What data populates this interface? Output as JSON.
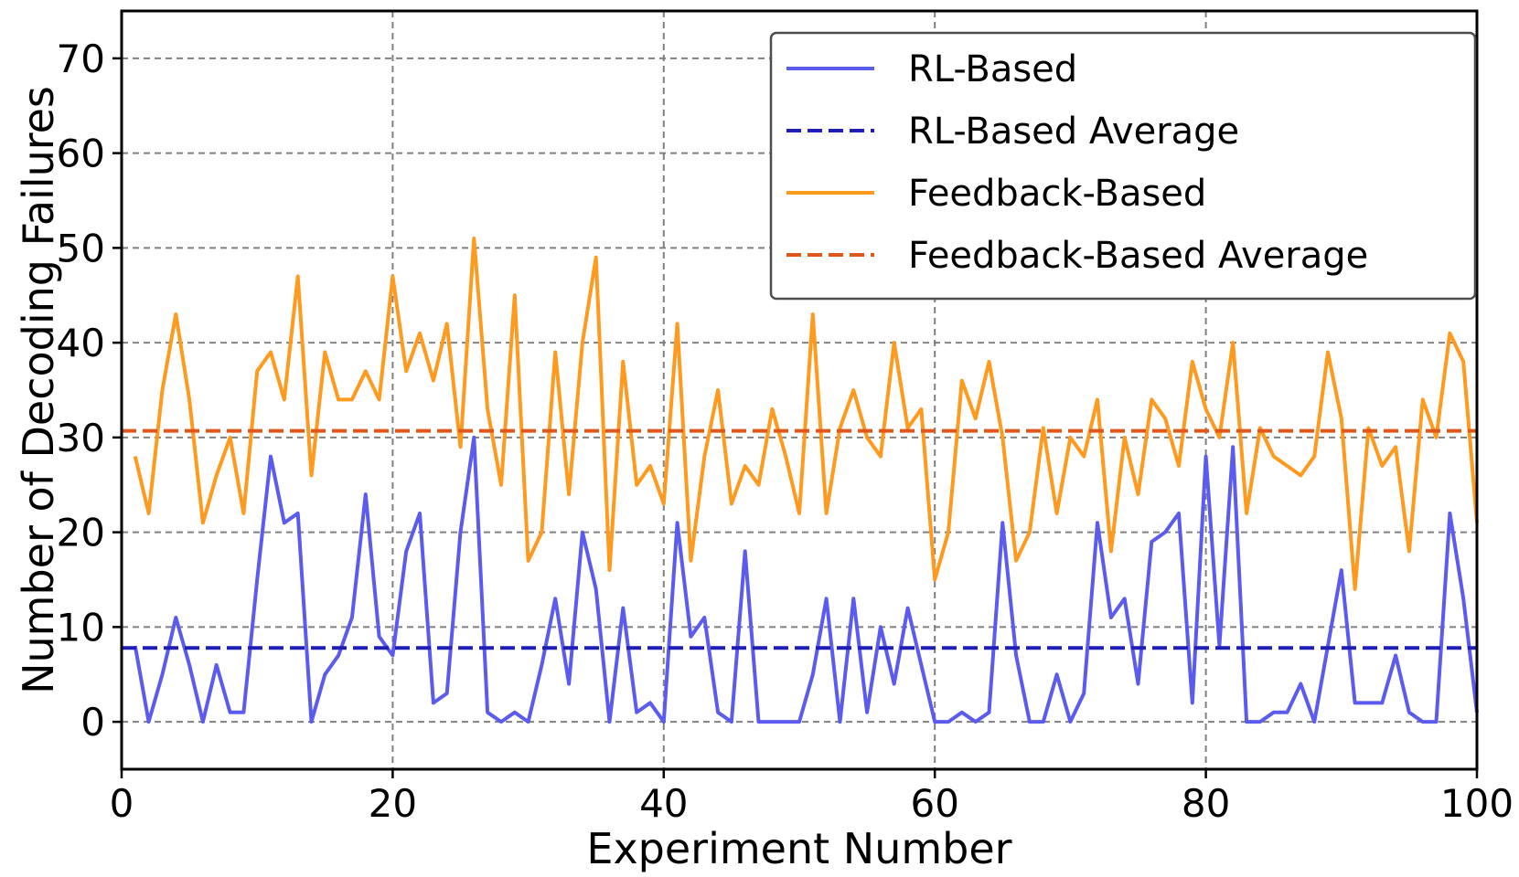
{
  "chart_data": {
    "type": "line",
    "title": "",
    "xlabel": "Experiment Number",
    "ylabel": "Number of Decoding Failures",
    "xlim": [
      0,
      100
    ],
    "ylim": [
      -5,
      75
    ],
    "xticks": [
      0,
      20,
      40,
      60,
      80,
      100
    ],
    "yticks": [
      0,
      10,
      20,
      30,
      40,
      50,
      60,
      70
    ],
    "grid": true,
    "legend_position": "top-right",
    "x": [
      1,
      2,
      3,
      4,
      5,
      6,
      7,
      8,
      9,
      10,
      11,
      12,
      13,
      14,
      15,
      16,
      17,
      18,
      19,
      20,
      21,
      22,
      23,
      24,
      25,
      26,
      27,
      28,
      29,
      30,
      31,
      32,
      33,
      34,
      35,
      36,
      37,
      38,
      39,
      40,
      41,
      42,
      43,
      44,
      45,
      46,
      47,
      48,
      49,
      50,
      51,
      52,
      53,
      54,
      55,
      56,
      57,
      58,
      59,
      60,
      61,
      62,
      63,
      64,
      65,
      66,
      67,
      68,
      69,
      70,
      71,
      72,
      73,
      74,
      75,
      76,
      77,
      78,
      79,
      80,
      81,
      82,
      83,
      84,
      85,
      86,
      87,
      88,
      89,
      90,
      91,
      92,
      93,
      94,
      95,
      96,
      97,
      98,
      99,
      100
    ],
    "series": [
      {
        "name": "RL-Based",
        "color": "#5b5bf0",
        "style": "solid",
        "values": [
          8,
          0,
          5,
          11,
          6,
          0,
          6,
          1,
          1,
          15,
          28,
          21,
          22,
          0,
          5,
          7,
          11,
          24,
          9,
          7,
          18,
          22,
          2,
          3,
          20,
          30,
          1,
          0,
          1,
          0,
          6,
          13,
          4,
          20,
          14,
          0,
          12,
          1,
          2,
          0,
          21,
          9,
          11,
          1,
          0,
          18,
          0,
          0,
          0,
          0,
          5,
          13,
          0,
          13,
          1,
          10,
          4,
          12,
          6,
          0,
          0,
          1,
          0,
          1,
          21,
          7,
          0,
          0,
          5,
          0,
          3,
          21,
          11,
          13,
          4,
          19,
          20,
          22,
          2,
          28,
          8,
          29,
          0,
          0,
          1,
          1,
          4,
          0,
          8,
          16,
          2,
          2,
          2,
          7,
          1,
          0,
          0,
          22,
          13,
          1
        ]
      },
      {
        "name": "RL-Based Average",
        "color": "#1f1fb8",
        "style": "dashed",
        "value": 7.8
      },
      {
        "name": "Feedback-Based",
        "color": "#ff9a1f",
        "style": "solid",
        "values": [
          28,
          22,
          35,
          43,
          34,
          21,
          26,
          30,
          22,
          37,
          39,
          34,
          47,
          26,
          39,
          34,
          34,
          37,
          34,
          47,
          37,
          41,
          36,
          42,
          29,
          51,
          33,
          25,
          45,
          17,
          20,
          39,
          24,
          40,
          49,
          16,
          38,
          25,
          27,
          23,
          42,
          17,
          28,
          35,
          23,
          27,
          25,
          33,
          28,
          22,
          43,
          22,
          31,
          35,
          30,
          28,
          40,
          31,
          33,
          15,
          20,
          36,
          32,
          38,
          30,
          17,
          20,
          31,
          22,
          30,
          28,
          34,
          18,
          30,
          24,
          34,
          32,
          27,
          38,
          33,
          30,
          40,
          22,
          31,
          28,
          27,
          26,
          28,
          39,
          32,
          14,
          31,
          27,
          29,
          18,
          34,
          30,
          41,
          38,
          21
        ]
      },
      {
        "name": "Feedback-Based Average",
        "color": "#e0571b",
        "style": "dashed",
        "value": 30.7
      }
    ]
  }
}
